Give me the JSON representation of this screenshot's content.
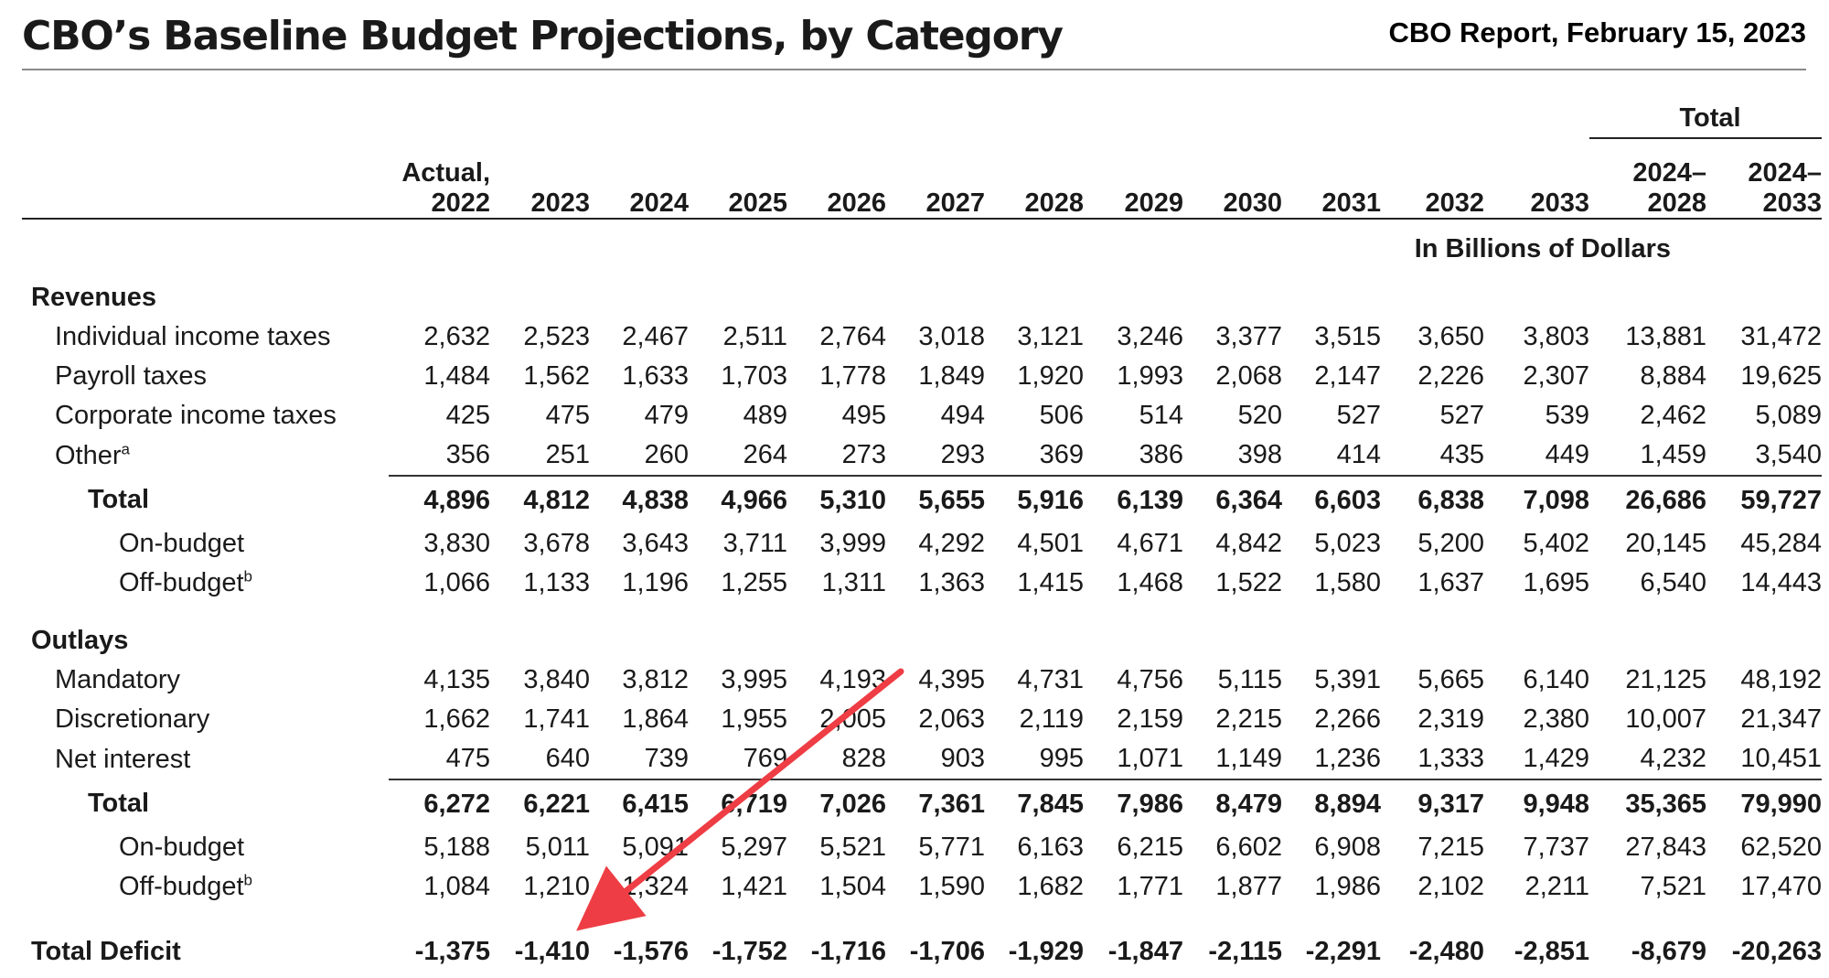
{
  "report": {
    "title": "CBO’s Baseline Budget Projections, by Category",
    "date_line": "CBO Report, February 15, 2023"
  },
  "table": {
    "group_header": "Total",
    "columns": [
      {
        "top": "Actual,",
        "bottom": "2022"
      },
      {
        "top": "",
        "bottom": "2023"
      },
      {
        "top": "",
        "bottom": "2024"
      },
      {
        "top": "",
        "bottom": "2025"
      },
      {
        "top": "",
        "bottom": "2026"
      },
      {
        "top": "",
        "bottom": "2027"
      },
      {
        "top": "",
        "bottom": "2028"
      },
      {
        "top": "",
        "bottom": "2029"
      },
      {
        "top": "",
        "bottom": "2030"
      },
      {
        "top": "",
        "bottom": "2031"
      },
      {
        "top": "",
        "bottom": "2032"
      },
      {
        "top": "",
        "bottom": "2033"
      },
      {
        "top": "2024–",
        "bottom": "2028"
      },
      {
        "top": "2024–",
        "bottom": "2033"
      }
    ],
    "units_label": "In Billions of Dollars",
    "revenues": {
      "heading": "Revenues",
      "rows": [
        {
          "label": "Individual income taxes",
          "values": [
            "2,632",
            "2,523",
            "2,467",
            "2,511",
            "2,764",
            "3,018",
            "3,121",
            "3,246",
            "3,377",
            "3,515",
            "3,650",
            "3,803",
            "13,881",
            "31,472"
          ]
        },
        {
          "label": "Payroll taxes",
          "values": [
            "1,484",
            "1,562",
            "1,633",
            "1,703",
            "1,778",
            "1,849",
            "1,920",
            "1,993",
            "2,068",
            "2,147",
            "2,226",
            "2,307",
            "8,884",
            "19,625"
          ]
        },
        {
          "label": "Corporate income taxes",
          "values": [
            "425",
            "475",
            "479",
            "489",
            "495",
            "494",
            "506",
            "514",
            "520",
            "527",
            "527",
            "539",
            "2,462",
            "5,089"
          ]
        },
        {
          "label": "Other",
          "footnote": "a",
          "values": [
            "356",
            "251",
            "260",
            "264",
            "273",
            "293",
            "369",
            "386",
            "398",
            "414",
            "435",
            "449",
            "1,459",
            "3,540"
          ]
        }
      ],
      "total": {
        "label": "Total",
        "values": [
          "4,896",
          "4,812",
          "4,838",
          "4,966",
          "5,310",
          "5,655",
          "5,916",
          "6,139",
          "6,364",
          "6,603",
          "6,838",
          "7,098",
          "26,686",
          "59,727"
        ]
      },
      "on_budget": {
        "label": "On-budget",
        "values": [
          "3,830",
          "3,678",
          "3,643",
          "3,711",
          "3,999",
          "4,292",
          "4,501",
          "4,671",
          "4,842",
          "5,023",
          "5,200",
          "5,402",
          "20,145",
          "45,284"
        ]
      },
      "off_budget": {
        "label": "Off-budget",
        "footnote": "b",
        "values": [
          "1,066",
          "1,133",
          "1,196",
          "1,255",
          "1,311",
          "1,363",
          "1,415",
          "1,468",
          "1,522",
          "1,580",
          "1,637",
          "1,695",
          "6,540",
          "14,443"
        ]
      }
    },
    "outlays": {
      "heading": "Outlays",
      "rows": [
        {
          "label": "Mandatory",
          "values": [
            "4,135",
            "3,840",
            "3,812",
            "3,995",
            "4,193",
            "4,395",
            "4,731",
            "4,756",
            "5,115",
            "5,391",
            "5,665",
            "6,140",
            "21,125",
            "48,192"
          ]
        },
        {
          "label": "Discretionary",
          "values": [
            "1,662",
            "1,741",
            "1,864",
            "1,955",
            "2,005",
            "2,063",
            "2,119",
            "2,159",
            "2,215",
            "2,266",
            "2,319",
            "2,380",
            "10,007",
            "21,347"
          ]
        },
        {
          "label": "Net interest",
          "values": [
            "475",
            "640",
            "739",
            "769",
            "828",
            "903",
            "995",
            "1,071",
            "1,149",
            "1,236",
            "1,333",
            "1,429",
            "4,232",
            "10,451"
          ]
        }
      ],
      "total": {
        "label": "Total",
        "values": [
          "6,272",
          "6,221",
          "6,415",
          "6,719",
          "7,026",
          "7,361",
          "7,845",
          "7,986",
          "8,479",
          "8,894",
          "9,317",
          "9,948",
          "35,365",
          "79,990"
        ]
      },
      "on_budget": {
        "label": "On-budget",
        "values": [
          "5,188",
          "5,011",
          "5,091",
          "5,297",
          "5,521",
          "5,771",
          "6,163",
          "6,215",
          "6,602",
          "6,908",
          "7,215",
          "7,737",
          "27,843",
          "62,520"
        ]
      },
      "off_budget": {
        "label": "Off-budget",
        "footnote": "b",
        "values": [
          "1,084",
          "1,210",
          "1,324",
          "1,421",
          "1,504",
          "1,590",
          "1,682",
          "1,771",
          "1,877",
          "1,986",
          "2,102",
          "2,211",
          "7,521",
          "17,470"
        ]
      }
    },
    "deficit": {
      "label": "Total Deficit",
      "values": [
        "-1,375",
        "-1,410",
        "-1,576",
        "-1,752",
        "-1,716",
        "-1,706",
        "-1,929",
        "-1,847",
        "-2,115",
        "-2,291",
        "-2,480",
        "-2,851",
        "-8,679",
        "-20,263"
      ]
    }
  },
  "annotation": {
    "arrow_color": "#ee3d44"
  }
}
